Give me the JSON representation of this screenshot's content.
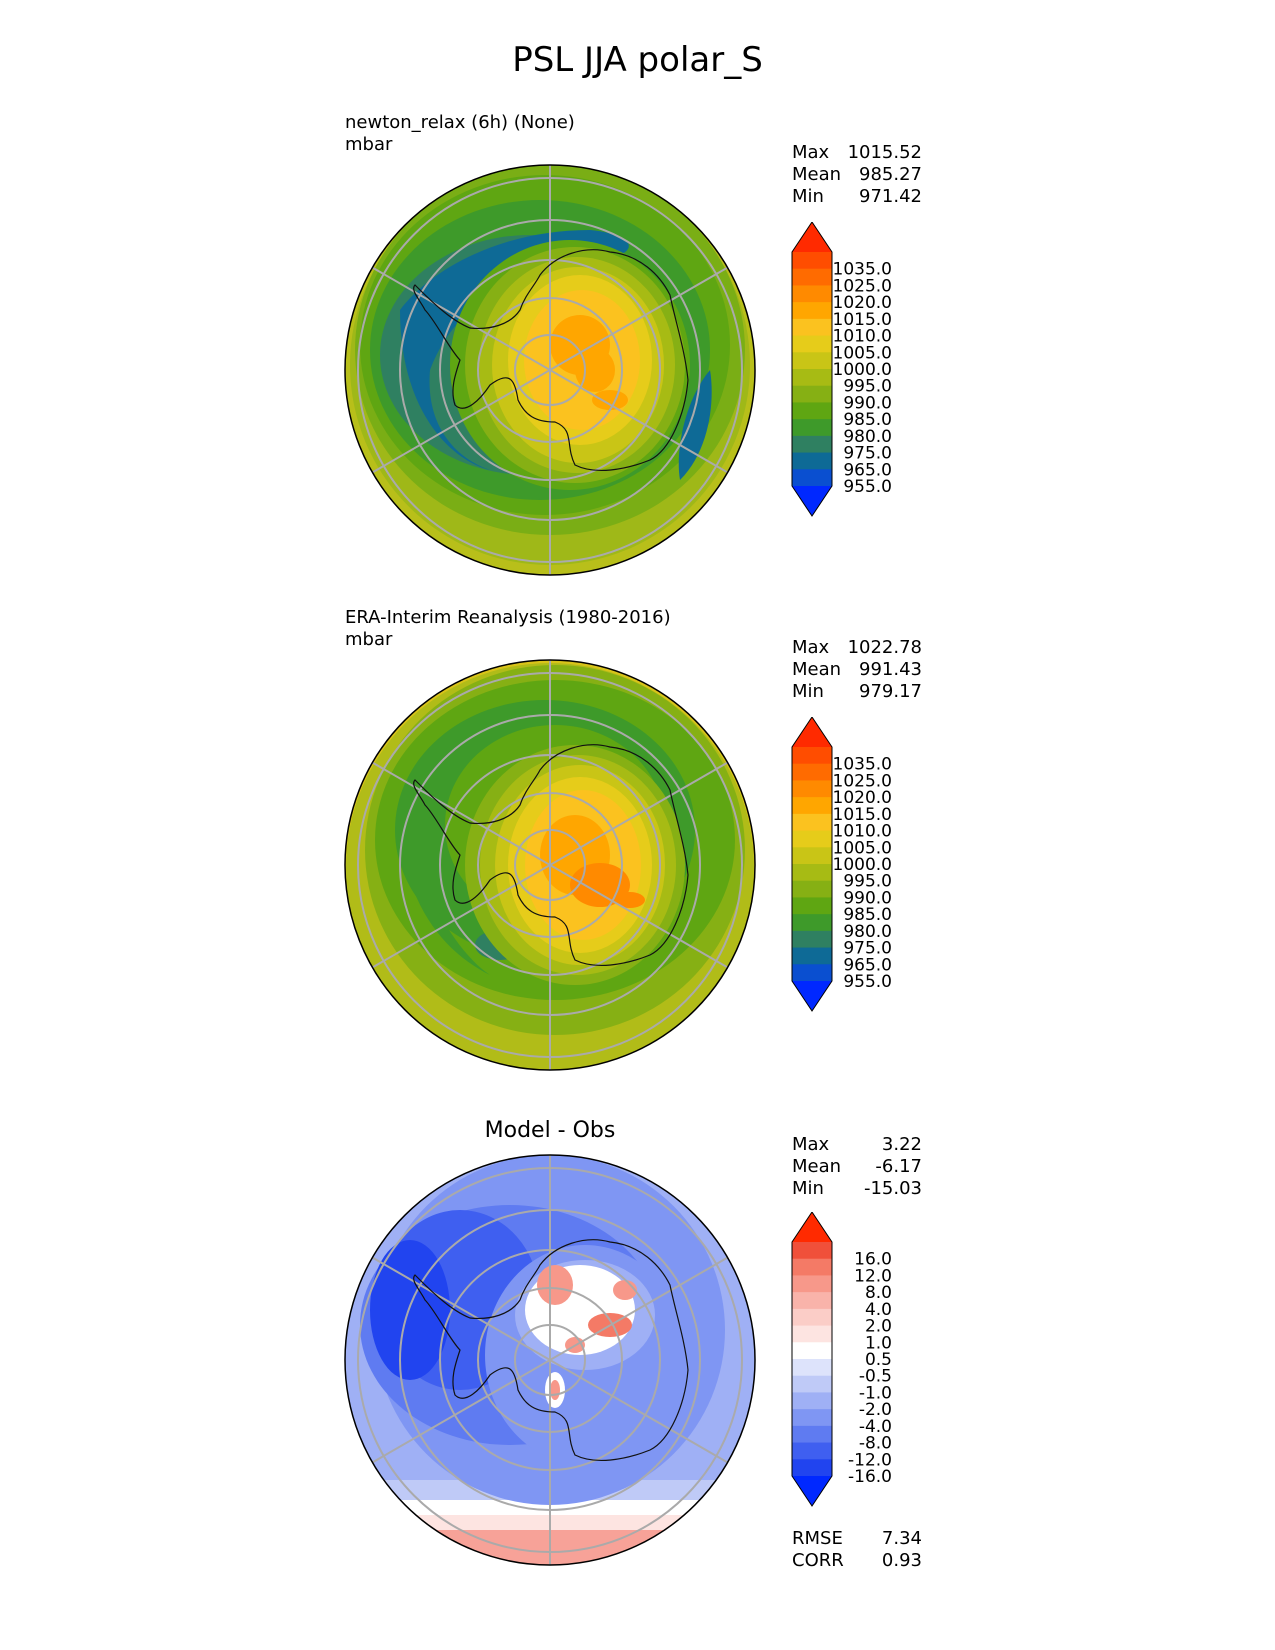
{
  "title": "PSL JJA polar_S",
  "panels": [
    {
      "id": "test",
      "label_line1": "newton_relax (6h) (None)",
      "label_line2": "mbar",
      "stats": [
        [
          "Max",
          "1015.52"
        ],
        [
          "Mean",
          "985.27"
        ],
        [
          "Min",
          "971.42"
        ]
      ]
    },
    {
      "id": "ref",
      "label_line1": "ERA-Interim Reanalysis (1980-2016)",
      "label_line2": "mbar",
      "stats": [
        [
          "Max",
          "1022.78"
        ],
        [
          "Mean",
          "991.43"
        ],
        [
          "Min",
          "979.17"
        ]
      ]
    },
    {
      "id": "diff",
      "subtitle": "Model - Obs",
      "stats": [
        [
          "Max",
          "3.22"
        ],
        [
          "Mean",
          "-6.17"
        ],
        [
          "Min",
          "-15.03"
        ]
      ],
      "metrics": [
        [
          "RMSE",
          "7.34"
        ],
        [
          "CORR",
          "0.93"
        ]
      ]
    }
  ],
  "colorbars": {
    "abs": {
      "ticks": [
        "1035.0",
        "1025.0",
        "1020.0",
        "1015.0",
        "1010.0",
        "1005.0",
        "1000.0",
        "995.0",
        "990.0",
        "985.0",
        "980.0",
        "975.0",
        "965.0",
        "955.0"
      ],
      "colors": [
        "#ff2a00",
        "#ff4d00",
        "#ff6b00",
        "#ff8a00",
        "#ffa600",
        "#fbc21f",
        "#e6cc1a",
        "#c9c516",
        "#a7bb14",
        "#86b014",
        "#5fa612",
        "#3e9a2a",
        "#2f8061",
        "#0e6a96",
        "#0a4fd0",
        "#0028ff"
      ]
    },
    "diff": {
      "ticks": [
        "16.0",
        "12.0",
        "8.0",
        "4.0",
        "2.0",
        "1.0",
        "0.5",
        "-0.5",
        "-1.0",
        "-2.0",
        "-4.0",
        "-8.0",
        "-12.0",
        "-16.0"
      ],
      "colors": [
        "#ff2a00",
        "#f0503a",
        "#f47a66",
        "#f7988a",
        "#f9b3aa",
        "#fbcdc7",
        "#fde4e1",
        "#ffffff",
        "#dde3fb",
        "#bfcaf7",
        "#9fb0f5",
        "#7f96f3",
        "#5f7bf1",
        "#3f5ff0",
        "#2144ef",
        "#0028ff"
      ]
    }
  },
  "chart_data": [
    {
      "type": "heatmap",
      "title": "newton_relax (6h) (None)",
      "units": "mbar",
      "projection": "south polar stereographic",
      "stats": {
        "max": 1015.52,
        "mean": 985.27,
        "min": 971.42
      },
      "levels": [
        955,
        965,
        975,
        980,
        985,
        990,
        995,
        1000,
        1005,
        1010,
        1015,
        1020,
        1025,
        1035
      ]
    },
    {
      "type": "heatmap",
      "title": "ERA-Interim Reanalysis (1980-2016)",
      "units": "mbar",
      "projection": "south polar stereographic",
      "stats": {
        "max": 1022.78,
        "mean": 991.43,
        "min": 979.17
      },
      "levels": [
        955,
        965,
        975,
        980,
        985,
        990,
        995,
        1000,
        1005,
        1010,
        1015,
        1020,
        1025,
        1035
      ]
    },
    {
      "type": "heatmap",
      "title": "Model - Obs",
      "projection": "south polar stereographic",
      "stats": {
        "max": 3.22,
        "mean": -6.17,
        "min": -15.03,
        "rmse": 7.34,
        "corr": 0.93
      },
      "levels": [
        -16,
        -12,
        -8,
        -4,
        -2,
        -1,
        -0.5,
        0.5,
        1,
        2,
        4,
        8,
        12,
        16
      ]
    }
  ]
}
